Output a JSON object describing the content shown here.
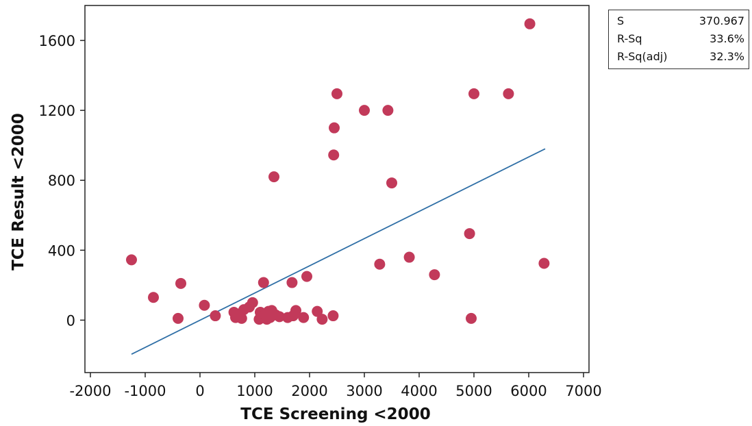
{
  "chart_data": {
    "type": "scatter",
    "xlabel": "TCE Screening <2000",
    "ylabel": "TCE Result <2000",
    "xlim": [
      -2100,
      7100
    ],
    "ylim": [
      -300,
      1800
    ],
    "x_ticks": [
      -2000,
      -1000,
      0,
      1000,
      2000,
      3000,
      4000,
      5000,
      6000,
      7000
    ],
    "y_ticks": [
      0,
      400,
      800,
      1200,
      1600
    ],
    "x_tick_labels": [
      "-2000",
      "-1000",
      "0",
      "1000",
      "2000",
      "3000",
      "4000",
      "5000",
      "6000",
      "7000"
    ],
    "y_tick_labels": [
      "0",
      "400",
      "800",
      "1200",
      "1600"
    ],
    "grid": false,
    "marker_color": "#c23a5a",
    "line_color": "#2f6fa6",
    "points": [
      {
        "x": -1250,
        "y": 345
      },
      {
        "x": -850,
        "y": 130
      },
      {
        "x": -400,
        "y": 10
      },
      {
        "x": -350,
        "y": 210
      },
      {
        "x": 80,
        "y": 85
      },
      {
        "x": 280,
        "y": 25
      },
      {
        "x": 620,
        "y": 45
      },
      {
        "x": 650,
        "y": 15
      },
      {
        "x": 700,
        "y": 35
      },
      {
        "x": 760,
        "y": 10
      },
      {
        "x": 800,
        "y": 60
      },
      {
        "x": 900,
        "y": 75
      },
      {
        "x": 960,
        "y": 100
      },
      {
        "x": 1080,
        "y": 5
      },
      {
        "x": 1100,
        "y": 45
      },
      {
        "x": 1130,
        "y": 20
      },
      {
        "x": 1160,
        "y": 215
      },
      {
        "x": 1180,
        "y": 30
      },
      {
        "x": 1220,
        "y": 5
      },
      {
        "x": 1250,
        "y": 50
      },
      {
        "x": 1280,
        "y": 15
      },
      {
        "x": 1310,
        "y": 55
      },
      {
        "x": 1350,
        "y": 820
      },
      {
        "x": 1380,
        "y": 30
      },
      {
        "x": 1450,
        "y": 20
      },
      {
        "x": 1600,
        "y": 15
      },
      {
        "x": 1680,
        "y": 215
      },
      {
        "x": 1700,
        "y": 25
      },
      {
        "x": 1750,
        "y": 55
      },
      {
        "x": 1890,
        "y": 15
      },
      {
        "x": 1950,
        "y": 250
      },
      {
        "x": 2140,
        "y": 50
      },
      {
        "x": 2230,
        "y": 5
      },
      {
        "x": 2430,
        "y": 25
      },
      {
        "x": 2440,
        "y": 945
      },
      {
        "x": 2450,
        "y": 1100
      },
      {
        "x": 2500,
        "y": 1295
      },
      {
        "x": 3000,
        "y": 1200
      },
      {
        "x": 3280,
        "y": 320
      },
      {
        "x": 3430,
        "y": 1200
      },
      {
        "x": 3500,
        "y": 785
      },
      {
        "x": 3820,
        "y": 360
      },
      {
        "x": 4280,
        "y": 260
      },
      {
        "x": 4920,
        "y": 495
      },
      {
        "x": 4950,
        "y": 10
      },
      {
        "x": 5000,
        "y": 1295
      },
      {
        "x": 5630,
        "y": 1295
      },
      {
        "x": 6020,
        "y": 1695
      },
      {
        "x": 6280,
        "y": 325
      }
    ],
    "fit_line": {
      "x": [
        -1250,
        6300
      ],
      "y": [
        -195,
        980
      ]
    }
  },
  "stats": {
    "rows": [
      {
        "label": "S",
        "value": "370.967"
      },
      {
        "label": "R-Sq",
        "value": "33.6%"
      },
      {
        "label": "R-Sq(adj)",
        "value": "32.3%"
      }
    ]
  }
}
